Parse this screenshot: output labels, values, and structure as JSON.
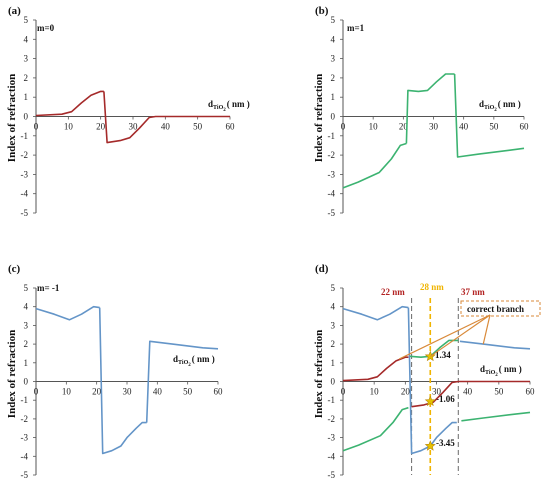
{
  "colors": {
    "m0": "#a52a2a",
    "m1": "#3cb371",
    "mneg1": "#6495c8",
    "axis": "#555555",
    "dash_gray": "#777777",
    "dash_gold": "#f0b400",
    "marker": "#e6c200",
    "callout": "#d98a3a",
    "label_red": "#b22222"
  },
  "labels": {
    "ylabel": "Index of refraction",
    "xlabel_main": "d",
    "xlabel_sub": "TiO",
    "xlabel_sub2": "2",
    "xlabel_unit_b": "( nm )",
    "xlabel_unit_c": "( nm )",
    "panel_a": "(a)",
    "panel_b": "(b)",
    "panel_c": "(c)",
    "panel_d": "(d)",
    "m_a": "m=0",
    "m_b": "m=1",
    "m_c": "m= -1",
    "vline_22": "22 nm",
    "vline_28": "28 nm",
    "vline_37": "37 nm",
    "correct_branch": "correct branch",
    "val_134": "1.34",
    "val_106": "-1.06",
    "val_345": "-3.45"
  },
  "chart_data": [
    {
      "panel": "(a)",
      "type": "line",
      "xlim": [
        0,
        60
      ],
      "ylim": [
        -5,
        5
      ],
      "xticks": [
        0,
        10,
        20,
        30,
        40,
        50,
        60
      ],
      "yticks": [
        5,
        4,
        3,
        2,
        1,
        0,
        -1,
        -2,
        -3,
        -4,
        -5
      ],
      "series": [
        {
          "name": "m=0",
          "color": "#a52a2a",
          "segments": [
            [
              [
                0,
                0.05
              ],
              [
                8,
                0.12
              ],
              [
                11,
                0.25
              ],
              [
                14,
                0.7
              ],
              [
                17,
                1.1
              ],
              [
                20,
                1.3
              ],
              [
                21,
                1.3
              ]
            ],
            [
              [
                21,
                1.3
              ],
              [
                22,
                -1.35
              ],
              [
                26,
                -1.25
              ],
              [
                29,
                -1.1
              ],
              [
                32,
                -0.6
              ],
              [
                35,
                -0.05
              ],
              [
                37,
                0.0
              ],
              [
                60,
                0.0
              ]
            ]
          ]
        }
      ]
    },
    {
      "panel": "(b)",
      "type": "line",
      "xlim": [
        0,
        60
      ],
      "ylim": [
        -5,
        5
      ],
      "xticks": [
        0,
        10,
        20,
        30,
        40,
        50,
        60
      ],
      "yticks": [
        5,
        4,
        3,
        2,
        1,
        0,
        -1,
        -2,
        -3,
        -4,
        -5
      ],
      "series": [
        {
          "name": "m=1",
          "color": "#3cb371",
          "segments": [
            [
              [
                0,
                -3.7
              ],
              [
                5,
                -3.4
              ],
              [
                12,
                -2.9
              ],
              [
                16,
                -2.2
              ],
              [
                19,
                -1.5
              ],
              [
                21,
                -1.4
              ]
            ],
            [
              [
                21,
                -1.4
              ],
              [
                21.5,
                1.35
              ],
              [
                25,
                1.3
              ],
              [
                28,
                1.35
              ],
              [
                31,
                1.8
              ],
              [
                34,
                2.2
              ],
              [
                37,
                2.2
              ]
            ],
            [
              [
                37,
                2.2
              ],
              [
                38,
                -2.1
              ],
              [
                45,
                -1.95
              ],
              [
                55,
                -1.75
              ],
              [
                60,
                -1.65
              ]
            ]
          ]
        }
      ]
    },
    {
      "panel": "(c)",
      "type": "line",
      "xlim": [
        0,
        60
      ],
      "ylim": [
        -5,
        5
      ],
      "xticks": [
        0,
        10,
        20,
        30,
        40,
        50,
        60
      ],
      "yticks": [
        5,
        4,
        3,
        2,
        1,
        0,
        -1,
        -2,
        -3,
        -4,
        -5
      ],
      "series": [
        {
          "name": "m= -1",
          "color": "#6495c8",
          "segments": [
            [
              [
                0,
                3.9
              ],
              [
                6,
                3.6
              ],
              [
                11,
                3.3
              ],
              [
                15,
                3.6
              ],
              [
                19,
                4.0
              ],
              [
                21,
                3.95
              ]
            ],
            [
              [
                21,
                3.95
              ],
              [
                22,
                -3.85
              ],
              [
                25,
                -3.7
              ],
              [
                28,
                -3.45
              ],
              [
                30,
                -3.0
              ],
              [
                33,
                -2.5
              ],
              [
                35,
                -2.2
              ],
              [
                36.5,
                -2.2
              ]
            ],
            [
              [
                36.5,
                -2.2
              ],
              [
                37.5,
                2.15
              ],
              [
                45,
                2.0
              ],
              [
                55,
                1.8
              ],
              [
                60,
                1.75
              ]
            ]
          ]
        }
      ]
    },
    {
      "panel": "(d)",
      "type": "line",
      "xlim": [
        0,
        60
      ],
      "ylim": [
        -5,
        5
      ],
      "xticks": [
        0,
        10,
        20,
        30,
        40,
        50,
        60
      ],
      "yticks": [
        5,
        4,
        3,
        2,
        1,
        0,
        -1,
        -2,
        -3,
        -4,
        -5
      ],
      "vlines": [
        22,
        28,
        37
      ],
      "markers": [
        [
          28,
          1.34
        ],
        [
          28,
          -1.06
        ],
        [
          28,
          -3.45
        ]
      ],
      "series": [
        {
          "name": "m= -1",
          "color": "#6495c8",
          "segments": [
            [
              [
                0,
                3.9
              ],
              [
                6,
                3.6
              ],
              [
                11,
                3.3
              ],
              [
                15,
                3.6
              ],
              [
                19,
                4.0
              ],
              [
                21,
                3.95
              ]
            ],
            [
              [
                21,
                3.95
              ],
              [
                22,
                -3.85
              ],
              [
                25,
                -3.7
              ],
              [
                28,
                -3.45
              ],
              [
                30,
                -3.0
              ],
              [
                33,
                -2.5
              ],
              [
                35,
                -2.2
              ],
              [
                36.5,
                -2.2
              ]
            ],
            [
              [
                37.5,
                2.15
              ],
              [
                45,
                2.0
              ],
              [
                55,
                1.8
              ],
              [
                60,
                1.75
              ]
            ]
          ]
        },
        {
          "name": "m=0",
          "color": "#a52a2a",
          "segments": [
            [
              [
                0,
                0.05
              ],
              [
                8,
                0.12
              ],
              [
                11,
                0.25
              ],
              [
                14,
                0.7
              ],
              [
                17,
                1.1
              ],
              [
                20,
                1.3
              ],
              [
                21,
                1.3
              ]
            ],
            [
              [
                22,
                -1.35
              ],
              [
                26,
                -1.25
              ],
              [
                29,
                -1.1
              ],
              [
                32,
                -0.6
              ],
              [
                35,
                -0.05
              ],
              [
                37,
                0.0
              ],
              [
                60,
                0.0
              ]
            ]
          ]
        },
        {
          "name": "m=1",
          "color": "#3cb371",
          "segments": [
            [
              [
                0,
                -3.7
              ],
              [
                5,
                -3.4
              ],
              [
                12,
                -2.9
              ],
              [
                16,
                -2.2
              ],
              [
                19,
                -1.5
              ],
              [
                21,
                -1.4
              ]
            ],
            [
              [
                21.5,
                1.35
              ],
              [
                25,
                1.3
              ],
              [
                28,
                1.35
              ],
              [
                31,
                1.8
              ],
              [
                34,
                2.2
              ],
              [
                37,
                2.2
              ]
            ],
            [
              [
                38,
                -2.1
              ],
              [
                45,
                -1.95
              ],
              [
                55,
                -1.75
              ],
              [
                60,
                -1.65
              ]
            ]
          ]
        }
      ]
    }
  ]
}
